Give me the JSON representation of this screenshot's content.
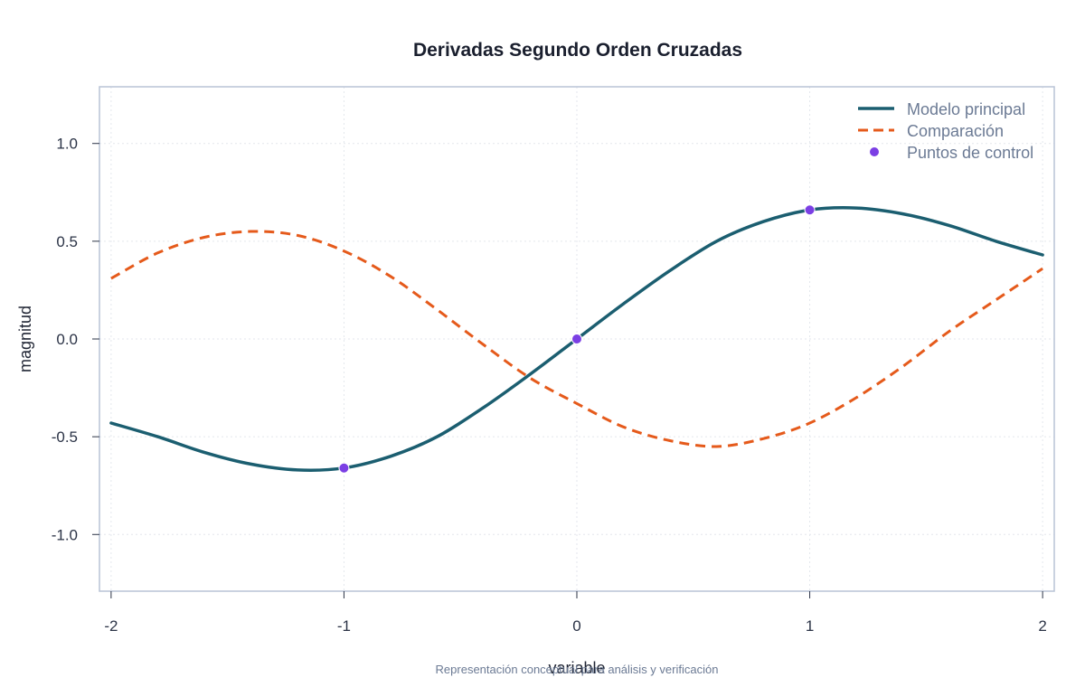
{
  "chart_data": {
    "type": "line",
    "title": "Derivadas Segundo Orden Cruzadas",
    "xlabel": "variable",
    "ylabel": "magnitud",
    "caption": "Representación conceptual para análisis y verificación",
    "xlim": [
      -2.05,
      2.05
    ],
    "ylim": [
      -1.29,
      1.29
    ],
    "xticks": [
      -2,
      -1,
      0,
      1,
      2
    ],
    "xtick_labels": [
      "-2",
      "-1",
      "0",
      "1",
      "2"
    ],
    "yticks": [
      -1.0,
      -0.5,
      0.0,
      0.5,
      1.0
    ],
    "ytick_labels": [
      "-1.0",
      "-0.5",
      "0.0",
      "0.5",
      "1.0"
    ],
    "grid": true,
    "legend_position": "top-right",
    "series": [
      {
        "name": "Modelo principal",
        "style": "solid",
        "color": "#1b5e70",
        "x": [
          -2.0,
          -1.8,
          -1.6,
          -1.4,
          -1.2,
          -1.0,
          -0.8,
          -0.6,
          -0.4,
          -0.2,
          0.0,
          0.2,
          0.4,
          0.6,
          0.8,
          1.0,
          1.2,
          1.4,
          1.6,
          1.8,
          2.0
        ],
        "y": [
          -0.43,
          -0.5,
          -0.58,
          -0.64,
          -0.67,
          -0.66,
          -0.6,
          -0.5,
          -0.35,
          -0.18,
          0.0,
          0.18,
          0.35,
          0.5,
          0.6,
          0.66,
          0.67,
          0.64,
          0.58,
          0.5,
          0.43
        ]
      },
      {
        "name": "Comparación",
        "style": "dashed",
        "color": "#e55a1b",
        "x": [
          -2.0,
          -1.8,
          -1.6,
          -1.4,
          -1.2,
          -1.0,
          -0.8,
          -0.6,
          -0.4,
          -0.2,
          0.0,
          0.2,
          0.4,
          0.6,
          0.8,
          1.0,
          1.2,
          1.4,
          1.6,
          1.8,
          2.0
        ],
        "y": [
          0.31,
          0.44,
          0.52,
          0.55,
          0.53,
          0.45,
          0.32,
          0.15,
          -0.03,
          -0.2,
          -0.33,
          -0.45,
          -0.52,
          -0.55,
          -0.51,
          -0.43,
          -0.3,
          -0.14,
          0.04,
          0.2,
          0.36
        ]
      }
    ],
    "points": {
      "name": "Puntos de control",
      "color": "#7b3fe4",
      "x": [
        -1,
        0,
        1
      ],
      "y": [
        -0.66,
        0.0,
        0.66
      ]
    }
  }
}
